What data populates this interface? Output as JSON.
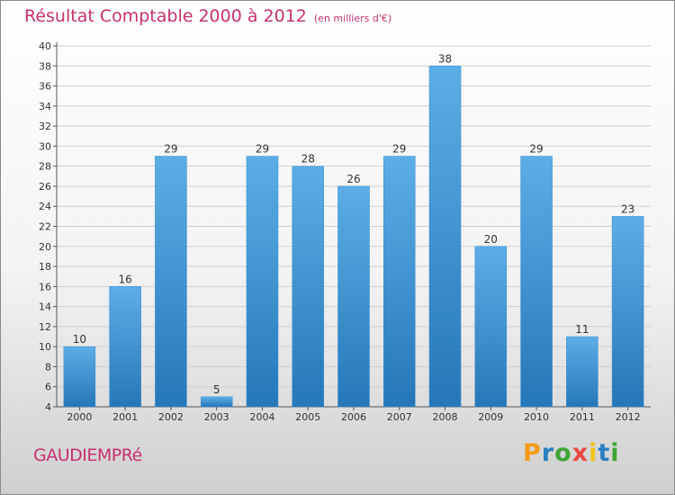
{
  "title": "Résultat Comptable 2000 à 2012",
  "unit_label": "(en milliers d'€)",
  "commune": "GAUDIEMPRé",
  "logo": {
    "letters": [
      "P",
      "r",
      "o",
      "x",
      "i",
      "t",
      "i"
    ],
    "colors": [
      "#f39c12",
      "#2a7fc1",
      "#3fa535",
      "#e84a3f",
      "#f3c318",
      "#2a7fc1",
      "#3fa535"
    ]
  },
  "colors": {
    "bar_top": "#5dade6",
    "bar_bottom": "#2677b8",
    "title": "#c8316f",
    "grid": "#cfcfcf"
  },
  "chart_data": {
    "type": "bar",
    "categories": [
      "2000",
      "2001",
      "2002",
      "2003",
      "2004",
      "2005",
      "2006",
      "2007",
      "2008",
      "2009",
      "2010",
      "2011",
      "2012"
    ],
    "values": [
      10,
      16,
      29,
      5,
      29,
      28,
      26,
      29,
      38,
      20,
      29,
      11,
      23
    ],
    "data_labels": [
      "10",
      "16",
      "29",
      "5",
      "29",
      "28",
      "26",
      "29",
      "38",
      "20",
      "29",
      "11",
      "23"
    ],
    "y_ticks": [
      4,
      6,
      8,
      10,
      12,
      14,
      16,
      18,
      20,
      22,
      24,
      26,
      28,
      30,
      32,
      34,
      36,
      38,
      40
    ],
    "ylim": [
      4,
      40
    ],
    "grid": true
  }
}
